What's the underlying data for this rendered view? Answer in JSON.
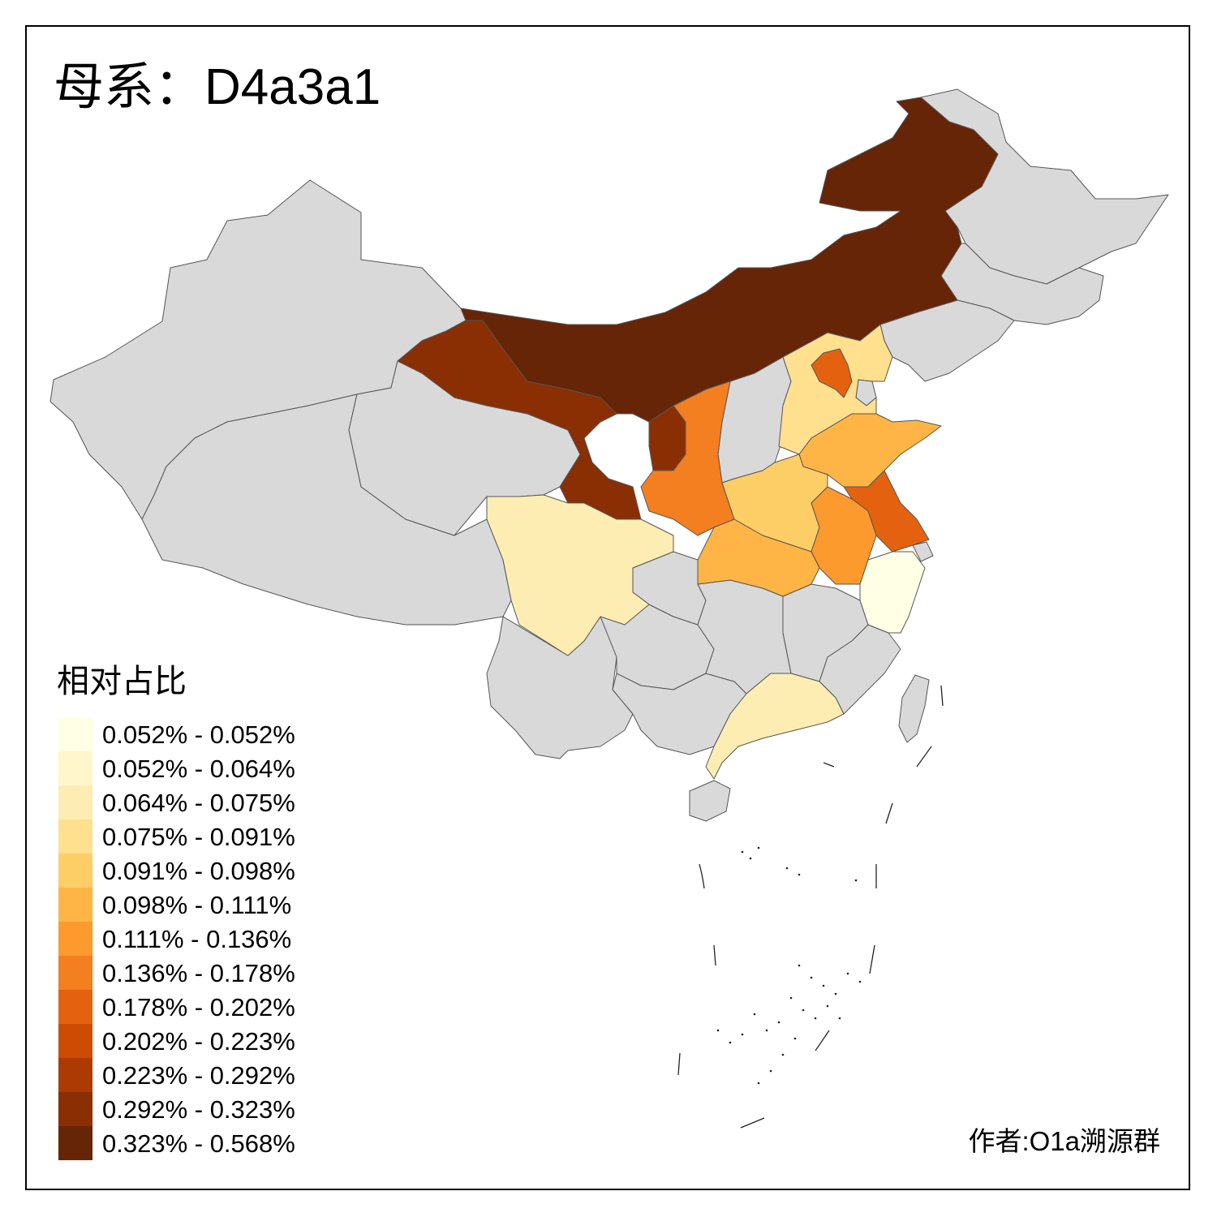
{
  "title": {
    "prefix": "母系：",
    "haplogroup": "D4a3a1"
  },
  "legend": {
    "title": "相对占比",
    "no_data_color": "#d9d9d9",
    "classes": [
      {
        "label": "0.052% - 0.052%",
        "color": "#ffffe5"
      },
      {
        "label": "0.052% - 0.064%",
        "color": "#fff6cc"
      },
      {
        "label": "0.064% - 0.075%",
        "color": "#feedb2"
      },
      {
        "label": "0.075% - 0.091%",
        "color": "#fee08f"
      },
      {
        "label": "0.091% - 0.098%",
        "color": "#fece66"
      },
      {
        "label": "0.098% - 0.111%",
        "color": "#feb546"
      },
      {
        "label": "0.111% - 0.136%",
        "color": "#fc9a2d"
      },
      {
        "label": "0.136% - 0.178%",
        "color": "#f47f20"
      },
      {
        "label": "0.178% - 0.202%",
        "color": "#e4620f"
      },
      {
        "label": "0.202% - 0.223%",
        "color": "#cd4c04"
      },
      {
        "label": "0.223% - 0.292%",
        "color": "#ac3b03"
      },
      {
        "label": "0.292% - 0.323%",
        "color": "#8a2f04"
      },
      {
        "label": "0.323% - 0.568%",
        "color": "#662506"
      }
    ]
  },
  "author": "作者:O1a溯源群",
  "regions": [
    {
      "id": "heilongjiang",
      "class": null
    },
    {
      "id": "jilin",
      "class": null
    },
    {
      "id": "liaoning",
      "class": null
    },
    {
      "id": "xinjiang",
      "class": null
    },
    {
      "id": "tibet",
      "class": null
    },
    {
      "id": "qinghai",
      "class": null
    },
    {
      "id": "yunnan",
      "class": null
    },
    {
      "id": "guizhou",
      "class": null
    },
    {
      "id": "guangxi",
      "class": null
    },
    {
      "id": "hunan",
      "class": null
    },
    {
      "id": "jiangxi",
      "class": null
    },
    {
      "id": "fujian",
      "class": null
    },
    {
      "id": "chongqing",
      "class": null
    },
    {
      "id": "shanxi",
      "class": null
    },
    {
      "id": "tianjin",
      "class": null
    },
    {
      "id": "shanghai",
      "class": null
    },
    {
      "id": "taiwan",
      "class": null
    },
    {
      "id": "hainan",
      "class": null
    },
    {
      "id": "inner-mongolia",
      "class": 12
    },
    {
      "id": "gansu",
      "class": 11
    },
    {
      "id": "ningxia",
      "class": 11
    },
    {
      "id": "shaanxi",
      "class": 7
    },
    {
      "id": "hebei",
      "class": 3
    },
    {
      "id": "beijing",
      "class": 8
    },
    {
      "id": "shandong",
      "class": 5
    },
    {
      "id": "henan",
      "class": 4
    },
    {
      "id": "jiangsu",
      "class": 8
    },
    {
      "id": "anhui",
      "class": 6
    },
    {
      "id": "hubei",
      "class": 5
    },
    {
      "id": "sichuan",
      "class": 2
    },
    {
      "id": "zhejiang",
      "class": 0
    },
    {
      "id": "guangdong",
      "class": 2
    }
  ]
}
